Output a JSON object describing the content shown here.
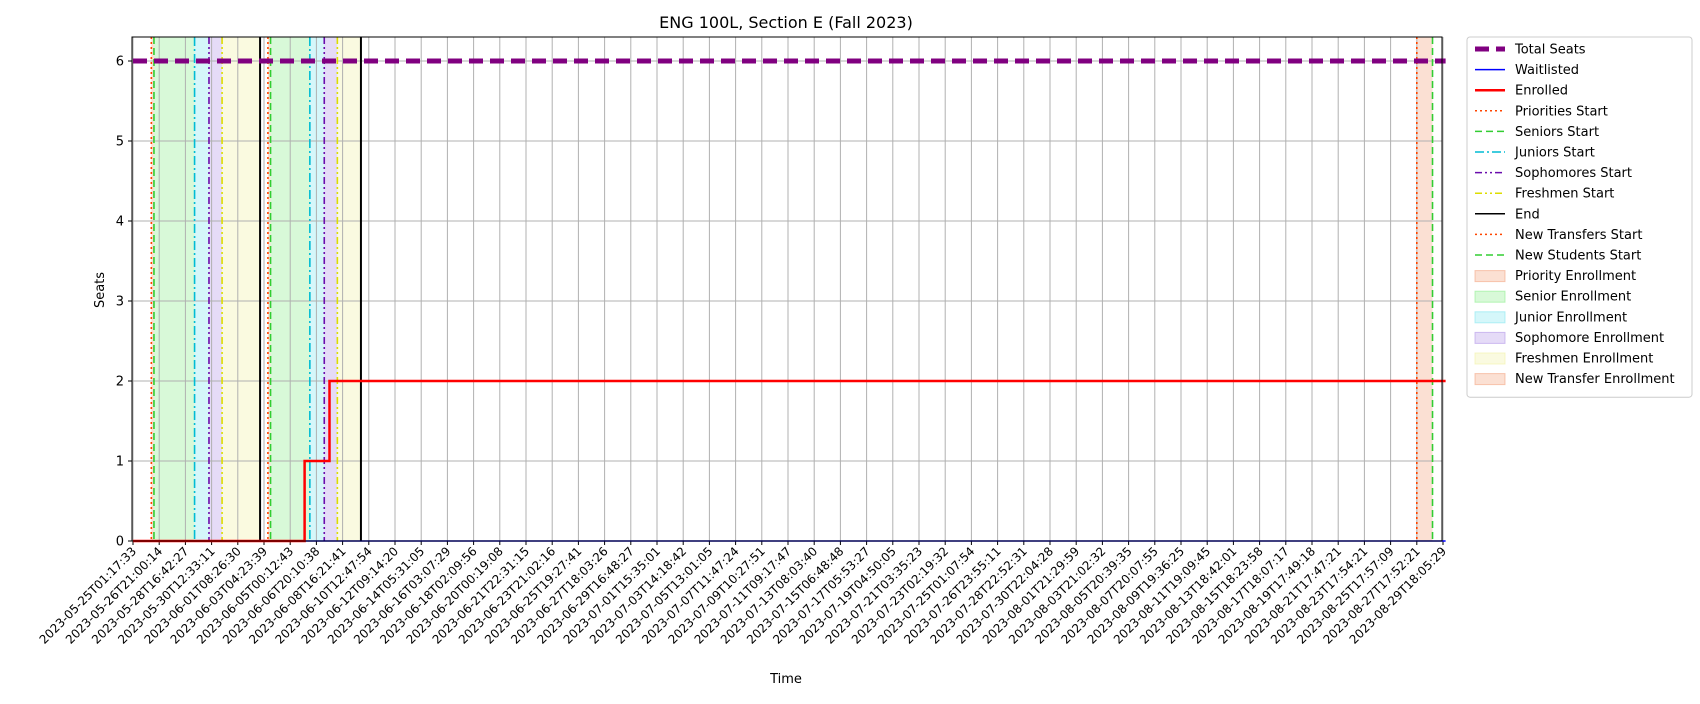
{
  "chart_data": {
    "type": "line",
    "title": "ENG 100L, Section E (Fall 2023)",
    "xlabel": "Time",
    "ylabel": "Seats",
    "ylim": [
      0,
      6.3
    ],
    "yticks": [
      0,
      1,
      2,
      3,
      4,
      5,
      6
    ],
    "grid": true,
    "legend_placement": "outside-top-right",
    "x_ticks": [
      "2023-05-25T01:17:33",
      "2023-05-26T21:00:14",
      "2023-05-28T16:42:27",
      "2023-05-30T12:33:11",
      "2023-06-01T08:26:30",
      "2023-06-03T04:23:39",
      "2023-06-05T00:12:43",
      "2023-06-06T20:10:38",
      "2023-06-08T16:21:41",
      "2023-06-10T12:47:54",
      "2023-06-12T09:14:20",
      "2023-06-14T05:31:05",
      "2023-06-16T03:07:29",
      "2023-06-18T02:09:56",
      "2023-06-20T00:19:08",
      "2023-06-21T22:31:15",
      "2023-06-23T21:02:16",
      "2023-06-25T19:27:41",
      "2023-06-27T18:03:26",
      "2023-06-29T16:48:27",
      "2023-07-01T15:35:01",
      "2023-07-03T14:18:42",
      "2023-07-05T13:01:05",
      "2023-07-07T11:47:24",
      "2023-07-09T10:27:51",
      "2023-07-11T09:17:47",
      "2023-07-13T08:03:40",
      "2023-07-15T06:48:48",
      "2023-07-17T05:53:27",
      "2023-07-19T04:50:05",
      "2023-07-21T03:35:23",
      "2023-07-23T02:19:32",
      "2023-07-25T01:07:54",
      "2023-07-26T23:55:11",
      "2023-07-28T22:52:31",
      "2023-07-30T22:04:28",
      "2023-08-01T21:29:59",
      "2023-08-03T21:02:32",
      "2023-08-05T20:39:35",
      "2023-08-07T20:07:55",
      "2023-08-09T19:36:25",
      "2023-08-11T19:09:45",
      "2023-08-13T18:42:01",
      "2023-08-15T18:23:58",
      "2023-08-17T18:07:17",
      "2023-08-19T17:49:18",
      "2023-08-21T17:47:21",
      "2023-08-23T17:54:21",
      "2023-08-25T17:57:09",
      "2023-08-27T17:52:21",
      "2023-08-29T18:05:29"
    ],
    "series": [
      {
        "name": "Total Seats",
        "color": "#800080",
        "style": "dashed-thick",
        "points": [
          [
            0,
            6
          ],
          [
            50.1,
            6
          ]
        ]
      },
      {
        "name": "Waitlisted",
        "color": "#0000ff",
        "style": "solid",
        "points": [
          [
            0,
            0
          ],
          [
            50.1,
            0
          ]
        ]
      },
      {
        "name": "Enrolled",
        "color": "#ff0000",
        "style": "solid-thick",
        "points": [
          [
            0,
            0
          ],
          [
            6.55,
            0
          ],
          [
            6.55,
            1
          ],
          [
            7.5,
            1
          ],
          [
            7.5,
            2
          ],
          [
            50.1,
            2
          ]
        ]
      }
    ],
    "period_markers": [
      {
        "name": "Priorities Start",
        "color": "#ff4500",
        "style": "dotted",
        "x": [
          0.7,
          5.15
        ]
      },
      {
        "name": "Seniors Start",
        "color": "#32cd32",
        "style": "dashed",
        "x": [
          0.8,
          5.25
        ]
      },
      {
        "name": "Juniors Start",
        "color": "#00bcd4",
        "style": "dashdot",
        "x": [
          2.35,
          6.75
        ]
      },
      {
        "name": "Sophomores Start",
        "color": "#6a0dad",
        "style": "dashdotdot",
        "x": [
          2.9,
          7.3
        ]
      },
      {
        "name": "Freshmen Start",
        "color": "#dddd00",
        "style": "dashdotdot",
        "x": [
          3.4,
          7.8
        ]
      },
      {
        "name": "End",
        "color": "#000000",
        "style": "solid",
        "x": [
          4.85,
          8.7
        ]
      },
      {
        "name": "New Transfers Start",
        "color": "#ff4500",
        "style": "dotted",
        "x": [
          49.0
        ]
      },
      {
        "name": "New Students Start",
        "color": "#32cd32",
        "style": "dashed",
        "x": [
          49.6
        ]
      }
    ],
    "shaded_periods": [
      {
        "name": "Priority Enrollment",
        "color": "#f4a582",
        "ranges": [
          [
            0.7,
            0.8
          ],
          [
            5.15,
            5.25
          ]
        ]
      },
      {
        "name": "Senior Enrollment",
        "color": "#90ee90",
        "ranges": [
          [
            0.8,
            2.35
          ],
          [
            5.25,
            6.75
          ]
        ]
      },
      {
        "name": "Junior Enrollment",
        "color": "#87e8f0",
        "ranges": [
          [
            2.35,
            2.9
          ],
          [
            6.75,
            7.3
          ]
        ]
      },
      {
        "name": "Sophomore Enrollment",
        "color": "#b497e8",
        "ranges": [
          [
            2.9,
            3.4
          ],
          [
            7.3,
            7.8
          ]
        ]
      },
      {
        "name": "Freshmen Enrollment",
        "color": "#f2f2a6",
        "ranges": [
          [
            3.4,
            4.85
          ],
          [
            7.8,
            8.7
          ]
        ]
      },
      {
        "name": "New Transfer Enrollment",
        "color": "#f4a582",
        "ranges": [
          [
            49.0,
            49.6
          ]
        ]
      }
    ],
    "legend": [
      {
        "label": "Total Seats",
        "kind": "line",
        "color": "#800080",
        "style": "dashed-thick"
      },
      {
        "label": "Waitlisted",
        "kind": "line",
        "color": "#0000ff",
        "style": "solid"
      },
      {
        "label": "Enrolled",
        "kind": "line",
        "color": "#ff0000",
        "style": "solid-thick"
      },
      {
        "label": "Priorities Start",
        "kind": "line",
        "color": "#ff4500",
        "style": "dotted"
      },
      {
        "label": "Seniors Start",
        "kind": "line",
        "color": "#32cd32",
        "style": "dashed"
      },
      {
        "label": "Juniors Start",
        "kind": "line",
        "color": "#00bcd4",
        "style": "dashdot"
      },
      {
        "label": "Sophomores Start",
        "kind": "line",
        "color": "#6a0dad",
        "style": "dashdotdot"
      },
      {
        "label": "Freshmen Start",
        "kind": "line",
        "color": "#dddd00",
        "style": "dashdotdot"
      },
      {
        "label": "End",
        "kind": "line",
        "color": "#000000",
        "style": "solid"
      },
      {
        "label": "New Transfers Start",
        "kind": "line",
        "color": "#ff4500",
        "style": "dotted"
      },
      {
        "label": "New Students Start",
        "kind": "line",
        "color": "#32cd32",
        "style": "dashed"
      },
      {
        "label": "Priority Enrollment",
        "kind": "patch",
        "color": "#f4a582"
      },
      {
        "label": "Senior Enrollment",
        "kind": "patch",
        "color": "#90ee90"
      },
      {
        "label": "Junior Enrollment",
        "kind": "patch",
        "color": "#87e8f0"
      },
      {
        "label": "Sophomore Enrollment",
        "kind": "patch",
        "color": "#b497e8"
      },
      {
        "label": "Freshmen Enrollment",
        "kind": "patch",
        "color": "#f2f2a6"
      },
      {
        "label": "New Transfer Enrollment",
        "kind": "patch",
        "color": "#f4a582"
      }
    ]
  }
}
